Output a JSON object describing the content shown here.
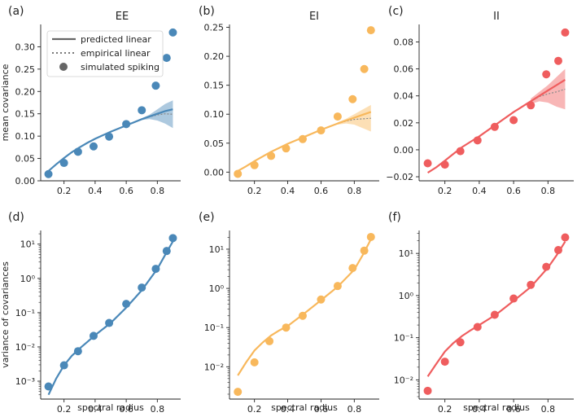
{
  "colors": {
    "EE": "#4a88b8",
    "EI": "#f8b85c",
    "II": "#ef5d5e",
    "legend": "#666666",
    "text": "#222222"
  },
  "legend": {
    "predicted": "predicted linear",
    "empirical": "empirical linear",
    "simulated": "simulated spiking"
  },
  "chart_data": [
    {
      "type": "line",
      "panel": "(a)",
      "title": "EE",
      "ylabel": "mean covariance",
      "xlabel": "",
      "yscale": "linear",
      "ylim": [
        0.0,
        0.35
      ],
      "yticks": [
        0.0,
        0.05,
        0.1,
        0.15,
        0.2,
        0.25,
        0.3
      ],
      "yticklabels": [
        "0.00",
        "0.05",
        "0.10",
        "0.15",
        "0.20",
        "0.25",
        "0.30"
      ],
      "xlim": [
        0.05,
        0.95
      ],
      "xticks": [
        0.2,
        0.4,
        0.6,
        0.8
      ],
      "xticklabels": [
        "0.2",
        "0.4",
        "0.6",
        "0.8"
      ],
      "color": "EE",
      "predicted": {
        "x": [
          0.1,
          0.15,
          0.2,
          0.25,
          0.3,
          0.35,
          0.4,
          0.5,
          0.6,
          0.7,
          0.8,
          0.85,
          0.9
        ],
        "y": [
          0.022,
          0.037,
          0.051,
          0.064,
          0.075,
          0.085,
          0.094,
          0.11,
          0.124,
          0.138,
          0.15,
          0.156,
          0.16
        ]
      },
      "band": {
        "x": [
          0.7,
          0.75,
          0.8,
          0.85,
          0.9
        ],
        "lower": [
          0.136,
          0.138,
          0.135,
          0.128,
          0.118
        ],
        "upper": [
          0.14,
          0.148,
          0.16,
          0.172,
          0.18
        ]
      },
      "simulated": {
        "x": [
          0.1,
          0.2,
          0.29,
          0.39,
          0.49,
          0.6,
          0.7,
          0.79,
          0.86,
          0.9
        ],
        "y": [
          0.015,
          0.04,
          0.065,
          0.077,
          0.099,
          0.127,
          0.158,
          0.213,
          0.275,
          0.332
        ]
      }
    },
    {
      "type": "line",
      "panel": "(b)",
      "title": "EI",
      "ylabel": "",
      "xlabel": "",
      "yscale": "linear",
      "ylim": [
        -0.015,
        0.255
      ],
      "yticks": [
        0.0,
        0.05,
        0.1,
        0.15,
        0.2,
        0.25
      ],
      "yticklabels": [
        "0.00",
        "0.05",
        "0.10",
        "0.15",
        "0.20",
        "0.25"
      ],
      "xlim": [
        0.05,
        0.95
      ],
      "xticks": [
        0.2,
        0.4,
        0.6,
        0.8
      ],
      "xticklabels": [
        "0.2",
        "0.4",
        "0.6",
        "0.8"
      ],
      "color": "EI",
      "predicted": {
        "x": [
          0.1,
          0.15,
          0.2,
          0.25,
          0.3,
          0.35,
          0.4,
          0.5,
          0.6,
          0.7,
          0.8,
          0.85,
          0.9
        ],
        "y": [
          0.002,
          0.01,
          0.019,
          0.027,
          0.035,
          0.042,
          0.049,
          0.061,
          0.073,
          0.084,
          0.094,
          0.099,
          0.104
        ]
      },
      "band": {
        "x": [
          0.7,
          0.75,
          0.8,
          0.85,
          0.9
        ],
        "lower": [
          0.082,
          0.084,
          0.082,
          0.076,
          0.07
        ],
        "upper": [
          0.086,
          0.092,
          0.1,
          0.108,
          0.116
        ]
      },
      "simulated": {
        "x": [
          0.1,
          0.2,
          0.3,
          0.39,
          0.49,
          0.6,
          0.7,
          0.79,
          0.86,
          0.9
        ],
        "y": [
          -0.003,
          0.012,
          0.028,
          0.041,
          0.057,
          0.072,
          0.096,
          0.126,
          0.178,
          0.245
        ]
      }
    },
    {
      "type": "line",
      "panel": "(c)",
      "title": "II",
      "ylabel": "",
      "xlabel": "",
      "yscale": "linear",
      "ylim": [
        -0.023,
        0.093
      ],
      "yticks": [
        -0.02,
        0.0,
        0.02,
        0.04,
        0.06,
        0.08
      ],
      "yticklabels": [
        "−0.02",
        "0.00",
        "0.02",
        "0.04",
        "0.06",
        "0.08"
      ],
      "xlim": [
        0.05,
        0.95
      ],
      "xticks": [
        0.2,
        0.4,
        0.6,
        0.8
      ],
      "xticklabels": [
        "0.2",
        "0.4",
        "0.6",
        "0.8"
      ],
      "color": "II",
      "predicted": {
        "x": [
          0.1,
          0.15,
          0.2,
          0.25,
          0.3,
          0.35,
          0.4,
          0.5,
          0.6,
          0.7,
          0.8,
          0.85,
          0.9
        ],
        "y": [
          -0.017,
          -0.013,
          -0.008,
          -0.003,
          0.002,
          0.006,
          0.01,
          0.019,
          0.028,
          0.036,
          0.044,
          0.048,
          0.052
        ]
      },
      "band": {
        "x": [
          0.7,
          0.75,
          0.8,
          0.85,
          0.9
        ],
        "lower": [
          0.034,
          0.036,
          0.035,
          0.032,
          0.03
        ],
        "upper": [
          0.038,
          0.043,
          0.048,
          0.054,
          0.06
        ]
      },
      "simulated": {
        "x": [
          0.1,
          0.2,
          0.29,
          0.39,
          0.49,
          0.6,
          0.7,
          0.79,
          0.86,
          0.9
        ],
        "y": [
          -0.01,
          -0.011,
          -0.001,
          0.007,
          0.017,
          0.022,
          0.033,
          0.056,
          0.066,
          0.087
        ]
      }
    },
    {
      "type": "line",
      "panel": "(d)",
      "title": "",
      "ylabel": "variance of covariances",
      "xlabel": "spectral radius",
      "yscale": "log",
      "ylim": [
        0.0003,
        25
      ],
      "yticks": [
        -3,
        -2,
        -1,
        0,
        1
      ],
      "yticklabels": [
        "10⁻³",
        "10⁻²",
        "10⁻¹",
        "10⁰",
        "10¹"
      ],
      "xlim": [
        0.05,
        0.95
      ],
      "xticks": [
        0.2,
        0.4,
        0.6,
        0.8
      ],
      "xticklabels": [
        "0.2",
        "0.4",
        "0.6",
        "0.8"
      ],
      "color": "EE",
      "predicted": {
        "x": [
          0.1,
          0.15,
          0.2,
          0.25,
          0.3,
          0.35,
          0.4,
          0.5,
          0.6,
          0.7,
          0.8,
          0.85,
          0.9
        ],
        "y": [
          0.0004,
          0.0012,
          0.0029,
          0.0055,
          0.009,
          0.014,
          0.022,
          0.05,
          0.14,
          0.45,
          1.9,
          4.8,
          12
        ]
      },
      "simulated": {
        "x": [
          0.1,
          0.2,
          0.29,
          0.39,
          0.49,
          0.6,
          0.7,
          0.79,
          0.86,
          0.9
        ],
        "y": [
          0.0007,
          0.0029,
          0.0075,
          0.021,
          0.05,
          0.18,
          0.54,
          1.9,
          6.3,
          15
        ]
      }
    },
    {
      "type": "line",
      "panel": "(e)",
      "title": "",
      "ylabel": "",
      "xlabel": "spectral radius",
      "yscale": "log",
      "ylim": [
        0.0015,
        30
      ],
      "yticks": [
        -2,
        -1,
        0,
        1
      ],
      "yticklabels": [
        "10⁻²",
        "10⁻¹",
        "10⁰",
        "10¹"
      ],
      "xlim": [
        0.05,
        0.95
      ],
      "xticks": [
        0.2,
        0.4,
        0.6,
        0.8
      ],
      "xticklabels": [
        "0.2",
        "0.4",
        "0.6",
        "0.8"
      ],
      "color": "EI",
      "predicted": {
        "x": [
          0.1,
          0.15,
          0.2,
          0.25,
          0.3,
          0.35,
          0.4,
          0.5,
          0.6,
          0.7,
          0.8,
          0.85,
          0.9
        ],
        "y": [
          0.006,
          0.013,
          0.026,
          0.042,
          0.063,
          0.085,
          0.11,
          0.23,
          0.5,
          1.1,
          3.0,
          7.0,
          18
        ]
      },
      "simulated": {
        "x": [
          0.1,
          0.2,
          0.29,
          0.39,
          0.49,
          0.6,
          0.7,
          0.79,
          0.86,
          0.9
        ],
        "y": [
          0.0023,
          0.013,
          0.045,
          0.1,
          0.2,
          0.52,
          1.15,
          3.3,
          9.2,
          20.5
        ]
      }
    },
    {
      "type": "line",
      "panel": "(f)",
      "title": "",
      "ylabel": "",
      "xlabel": "spectral radius",
      "yscale": "log",
      "ylim": [
        0.0035,
        35
      ],
      "yticks": [
        -2,
        -1,
        0,
        1
      ],
      "yticklabels": [
        "10⁻²",
        "10⁻¹",
        "10⁰",
        "10¹"
      ],
      "xlim": [
        0.05,
        0.95
      ],
      "xticks": [
        0.2,
        0.4,
        0.6,
        0.8
      ],
      "xticklabels": [
        "0.2",
        "0.4",
        "0.6",
        "0.8"
      ],
      "color": "II",
      "predicted": {
        "x": [
          0.1,
          0.15,
          0.2,
          0.25,
          0.3,
          0.35,
          0.4,
          0.5,
          0.6,
          0.7,
          0.8,
          0.85,
          0.9
        ],
        "y": [
          0.012,
          0.024,
          0.047,
          0.075,
          0.11,
          0.15,
          0.2,
          0.36,
          0.75,
          1.6,
          4.6,
          9.0,
          19
        ]
      },
      "simulated": {
        "x": [
          0.1,
          0.2,
          0.29,
          0.39,
          0.49,
          0.6,
          0.7,
          0.79,
          0.86,
          0.9
        ],
        "y": [
          0.0055,
          0.027,
          0.078,
          0.18,
          0.35,
          0.85,
          1.8,
          4.8,
          12,
          24
        ]
      }
    }
  ]
}
